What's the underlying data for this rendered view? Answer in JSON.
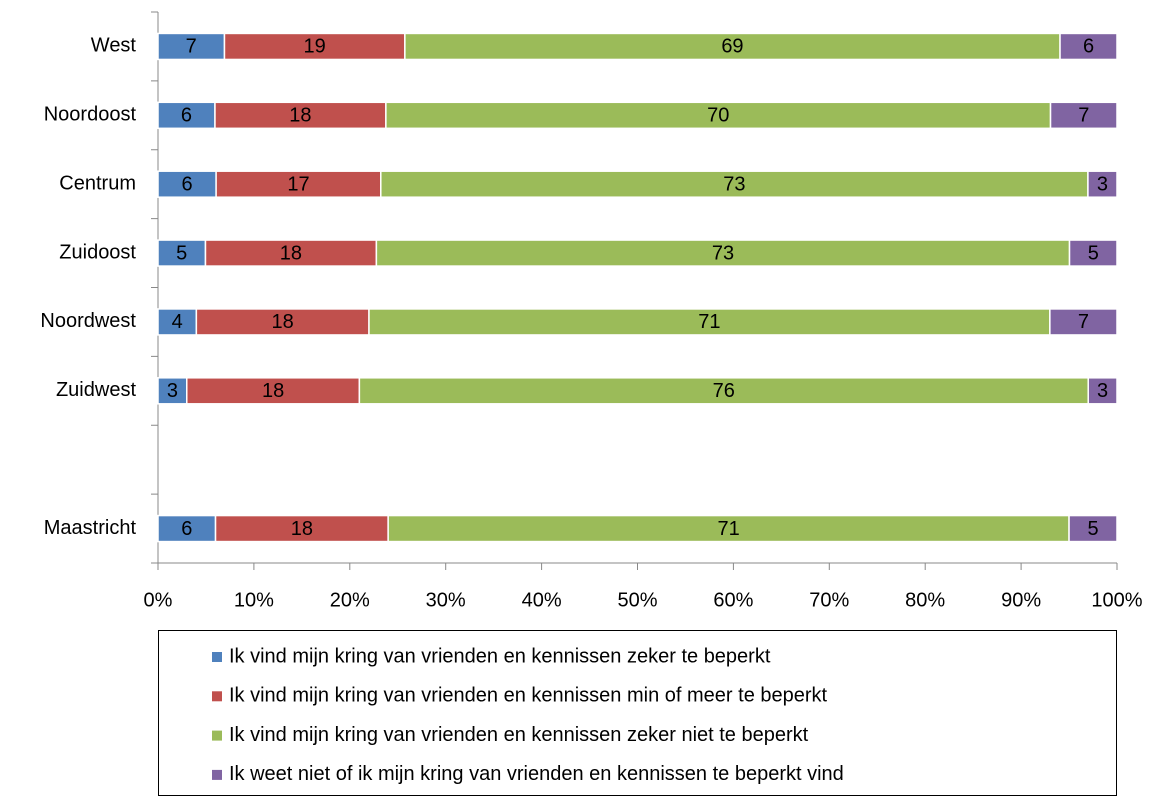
{
  "chart_data": {
    "type": "bar",
    "orientation": "horizontal",
    "categories": [
      "West",
      "Noordoost",
      "Centrum",
      "Zuidoost",
      "Noordwest",
      "Zuidwest",
      null,
      "Maastricht"
    ],
    "series": [
      {
        "name": "Ik vind mijn kring van vrienden en kennissen zeker te beperkt",
        "color": "#4f81bd",
        "values": [
          7,
          6,
          6,
          5,
          4,
          3,
          null,
          6
        ]
      },
      {
        "name": "Ik vind mijn kring van vrienden en kennissen min of meer te beperkt",
        "color": "#c0504d",
        "values": [
          19,
          18,
          17,
          18,
          18,
          18,
          null,
          18
        ]
      },
      {
        "name": "Ik vind mijn kring van vrienden en kennissen zeker niet te beperkt",
        "color": "#9bbb59",
        "values": [
          69,
          70,
          73,
          73,
          71,
          76,
          null,
          71
        ]
      },
      {
        "name": "Ik weet niet of ik mijn kring van vrienden en kennissen te beperkt vind",
        "color": "#8064a2",
        "values": [
          6,
          7,
          3,
          5,
          7,
          3,
          null,
          5
        ]
      }
    ],
    "xlim": [
      0,
      100
    ],
    "xticks": [
      {
        "value": 0,
        "label": "0%"
      },
      {
        "value": 10,
        "label": "10%"
      },
      {
        "value": 20,
        "label": "20%"
      },
      {
        "value": 30,
        "label": "30%"
      },
      {
        "value": 40,
        "label": "40%"
      },
      {
        "value": 50,
        "label": "50%"
      },
      {
        "value": 60,
        "label": "60%"
      },
      {
        "value": 70,
        "label": "70%"
      },
      {
        "value": 80,
        "label": "80%"
      },
      {
        "value": 90,
        "label": "90%"
      },
      {
        "value": 100,
        "label": "100%"
      }
    ],
    "legend": "bottom"
  }
}
